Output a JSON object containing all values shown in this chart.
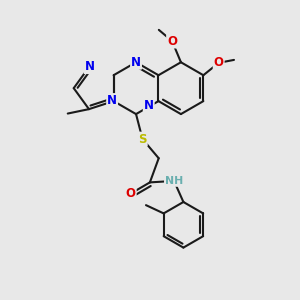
{
  "bg_color": "#e8e8e8",
  "bond_color": "#1a1a1a",
  "atom_colors": {
    "N": "#0000ee",
    "O": "#dd0000",
    "S": "#bbbb00",
    "C": "#1a1a1a",
    "H": "#6aafaf"
  },
  "bond_width": 1.5,
  "fig_size": [
    3.0,
    3.0
  ],
  "dpi": 100
}
